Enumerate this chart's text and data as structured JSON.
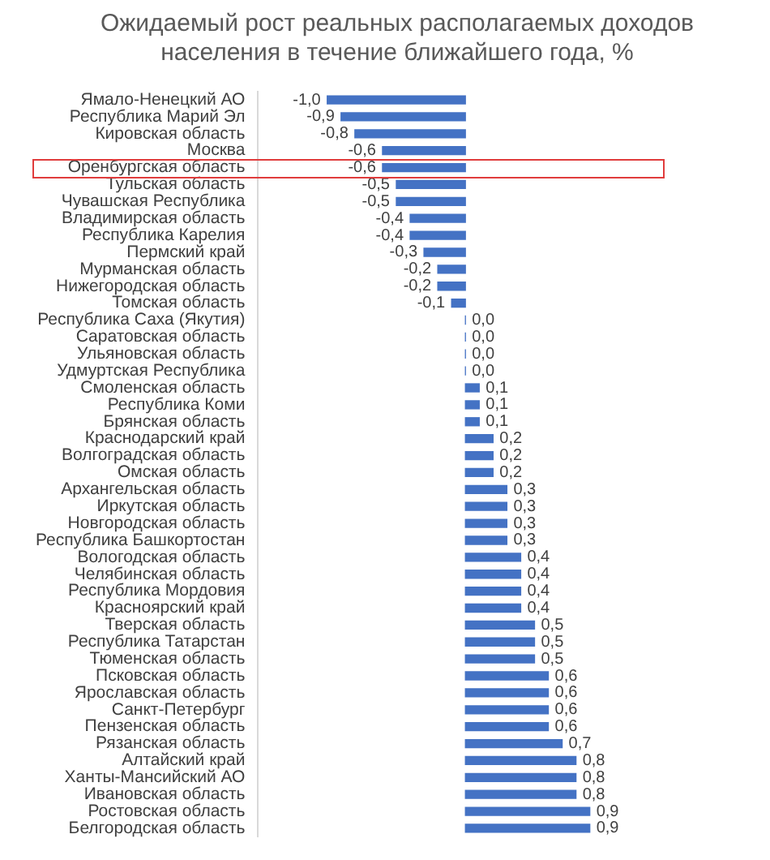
{
  "chart_data": {
    "type": "bar",
    "orientation": "horizontal",
    "title": "Ожидаемый рост реальных располагаемых доходов населения в течение ближайшего года, %",
    "categories": [
      "Ямало-Ненецкий АО",
      "Республика Марий Эл",
      "Кировская область",
      "Москва",
      "Оренбургская область",
      "Тульская область",
      "Чувашская Республика",
      "Владимирская область",
      "Республика Карелия",
      "Пермский край",
      "Мурманская область",
      "Нижегородская область",
      "Томская область",
      "Республика Саха (Якутия)",
      "Саратовская область",
      "Ульяновская область",
      "Удмуртская Республика",
      "Смоленская область",
      "Республика Коми",
      "Брянская область",
      "Краснодарский край",
      "Волгоградская область",
      "Омская область",
      "Архангельская область",
      "Иркутская область",
      "Новгородская область",
      "Республика Башкортостан",
      "Вологодская область",
      "Челябинская область",
      "Республика Мордовия",
      "Красноярский край",
      "Тверская область",
      "Республика Татарстан",
      "Тюменская область",
      "Псковская область",
      "Ярославская область",
      "Санкт-Петербург",
      "Пензенская область",
      "Рязанская область",
      "Алтайский край",
      "Ханты-Мансийский АО",
      "Ивановская область",
      "Ростовская область",
      "Белгородская область"
    ],
    "values": [
      -1.0,
      -0.9,
      -0.8,
      -0.6,
      -0.6,
      -0.5,
      -0.5,
      -0.4,
      -0.4,
      -0.3,
      -0.2,
      -0.2,
      -0.1,
      0.0,
      0.0,
      0.0,
      0.0,
      0.1,
      0.1,
      0.1,
      0.2,
      0.2,
      0.2,
      0.3,
      0.3,
      0.3,
      0.3,
      0.4,
      0.4,
      0.4,
      0.4,
      0.5,
      0.5,
      0.5,
      0.6,
      0.6,
      0.6,
      0.6,
      0.7,
      0.8,
      0.8,
      0.8,
      0.9,
      0.9
    ],
    "value_labels": [
      "-1,0",
      "-0,9",
      "-0,8",
      "-0,6",
      "-0,6",
      "-0,5",
      "-0,5",
      "-0,4",
      "-0,4",
      "-0,3",
      "-0,2",
      "-0,2",
      "-0,1",
      "0,0",
      "0,0",
      "0,0",
      "0,0",
      "0,1",
      "0,1",
      "0,1",
      "0,2",
      "0,2",
      "0,2",
      "0,3",
      "0,3",
      "0,3",
      "0,3",
      "0,4",
      "0,4",
      "0,4",
      "0,4",
      "0,5",
      "0,5",
      "0,5",
      "0,6",
      "0,6",
      "0,6",
      "0,6",
      "0,7",
      "0,8",
      "0,8",
      "0,8",
      "0,9",
      "0,9"
    ],
    "color": "#4472c4",
    "tick_labels": "y",
    "grid": false,
    "legend": false
  }
}
